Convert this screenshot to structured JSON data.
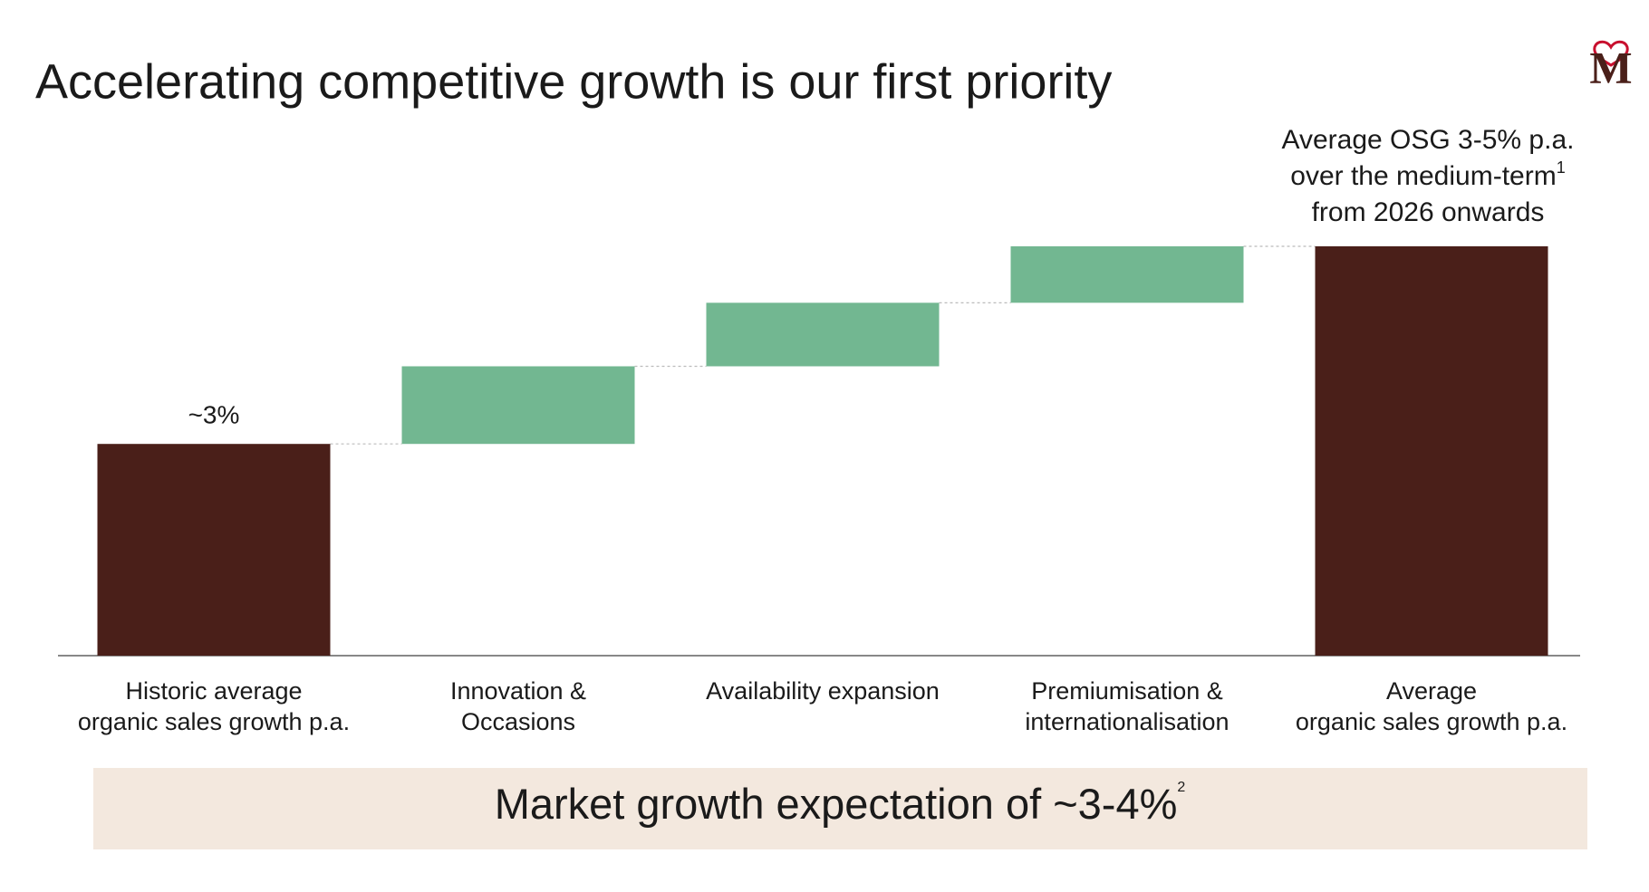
{
  "title": "Accelerating competitive growth is our first priority",
  "logo": "M",
  "chart_data": {
    "type": "waterfall",
    "categories": [
      [
        "Historic average",
        "organic sales growth p.a."
      ],
      [
        "Innovation &",
        "Occasions"
      ],
      [
        "Availability expansion"
      ],
      [
        "Premiumisation &",
        "internationalisation"
      ],
      [
        "Average",
        "organic sales growth p.a."
      ]
    ],
    "values": [
      3,
      1.1,
      0.9,
      0.8,
      5.8
    ],
    "measure": [
      "absolute",
      "relative",
      "relative",
      "relative",
      "total"
    ],
    "value_labels": [
      "~3%",
      null,
      null,
      null,
      null
    ],
    "colors": {
      "absolute": "#4a1f19",
      "relative": "#72b791",
      "total": "#4a1f19"
    },
    "annotation": {
      "lines": [
        "Average OSG 3-5% p.a.",
        "over the medium-term",
        "from 2026 onwards"
      ],
      "footnote": "1"
    },
    "banner": {
      "text": "Market growth expectation of ~3-4%",
      "footnote": "2"
    }
  }
}
